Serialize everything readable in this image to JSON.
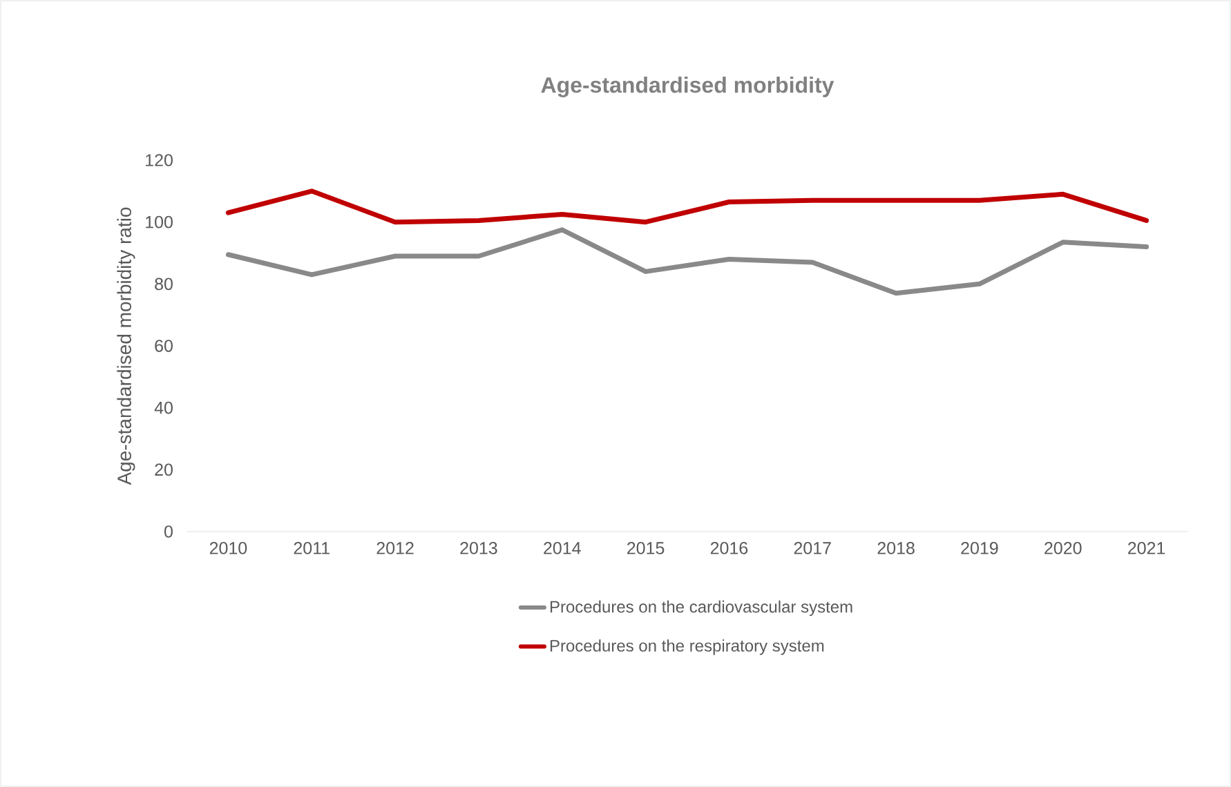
{
  "chart_data": {
    "type": "line",
    "title": "Age-standardised  morbidity",
    "ylabel": "Age-standardised morbidity ratio",
    "categories": [
      "2010",
      "2011",
      "2012",
      "2013",
      "2014",
      "2015",
      "2016",
      "2017",
      "2018",
      "2019",
      "2020",
      "2021"
    ],
    "series": [
      {
        "name": "Procedures on the cardiovascular system",
        "color": "#898989",
        "values": [
          89.5,
          83,
          89,
          89,
          97.5,
          84,
          88,
          87,
          77,
          80,
          93.5,
          92
        ]
      },
      {
        "name": "Procedures on the respiratory system",
        "color": "#c00000",
        "values": [
          103,
          110,
          100,
          100.5,
          102.5,
          100,
          106.5,
          107,
          107,
          107,
          109,
          100.5
        ]
      }
    ],
    "ylim": [
      0,
      120
    ],
    "yticks": [
      0,
      20,
      40,
      60,
      80,
      100,
      120
    ],
    "grid": false,
    "legend": "bottom",
    "marker": "none",
    "line_style": "solid"
  }
}
